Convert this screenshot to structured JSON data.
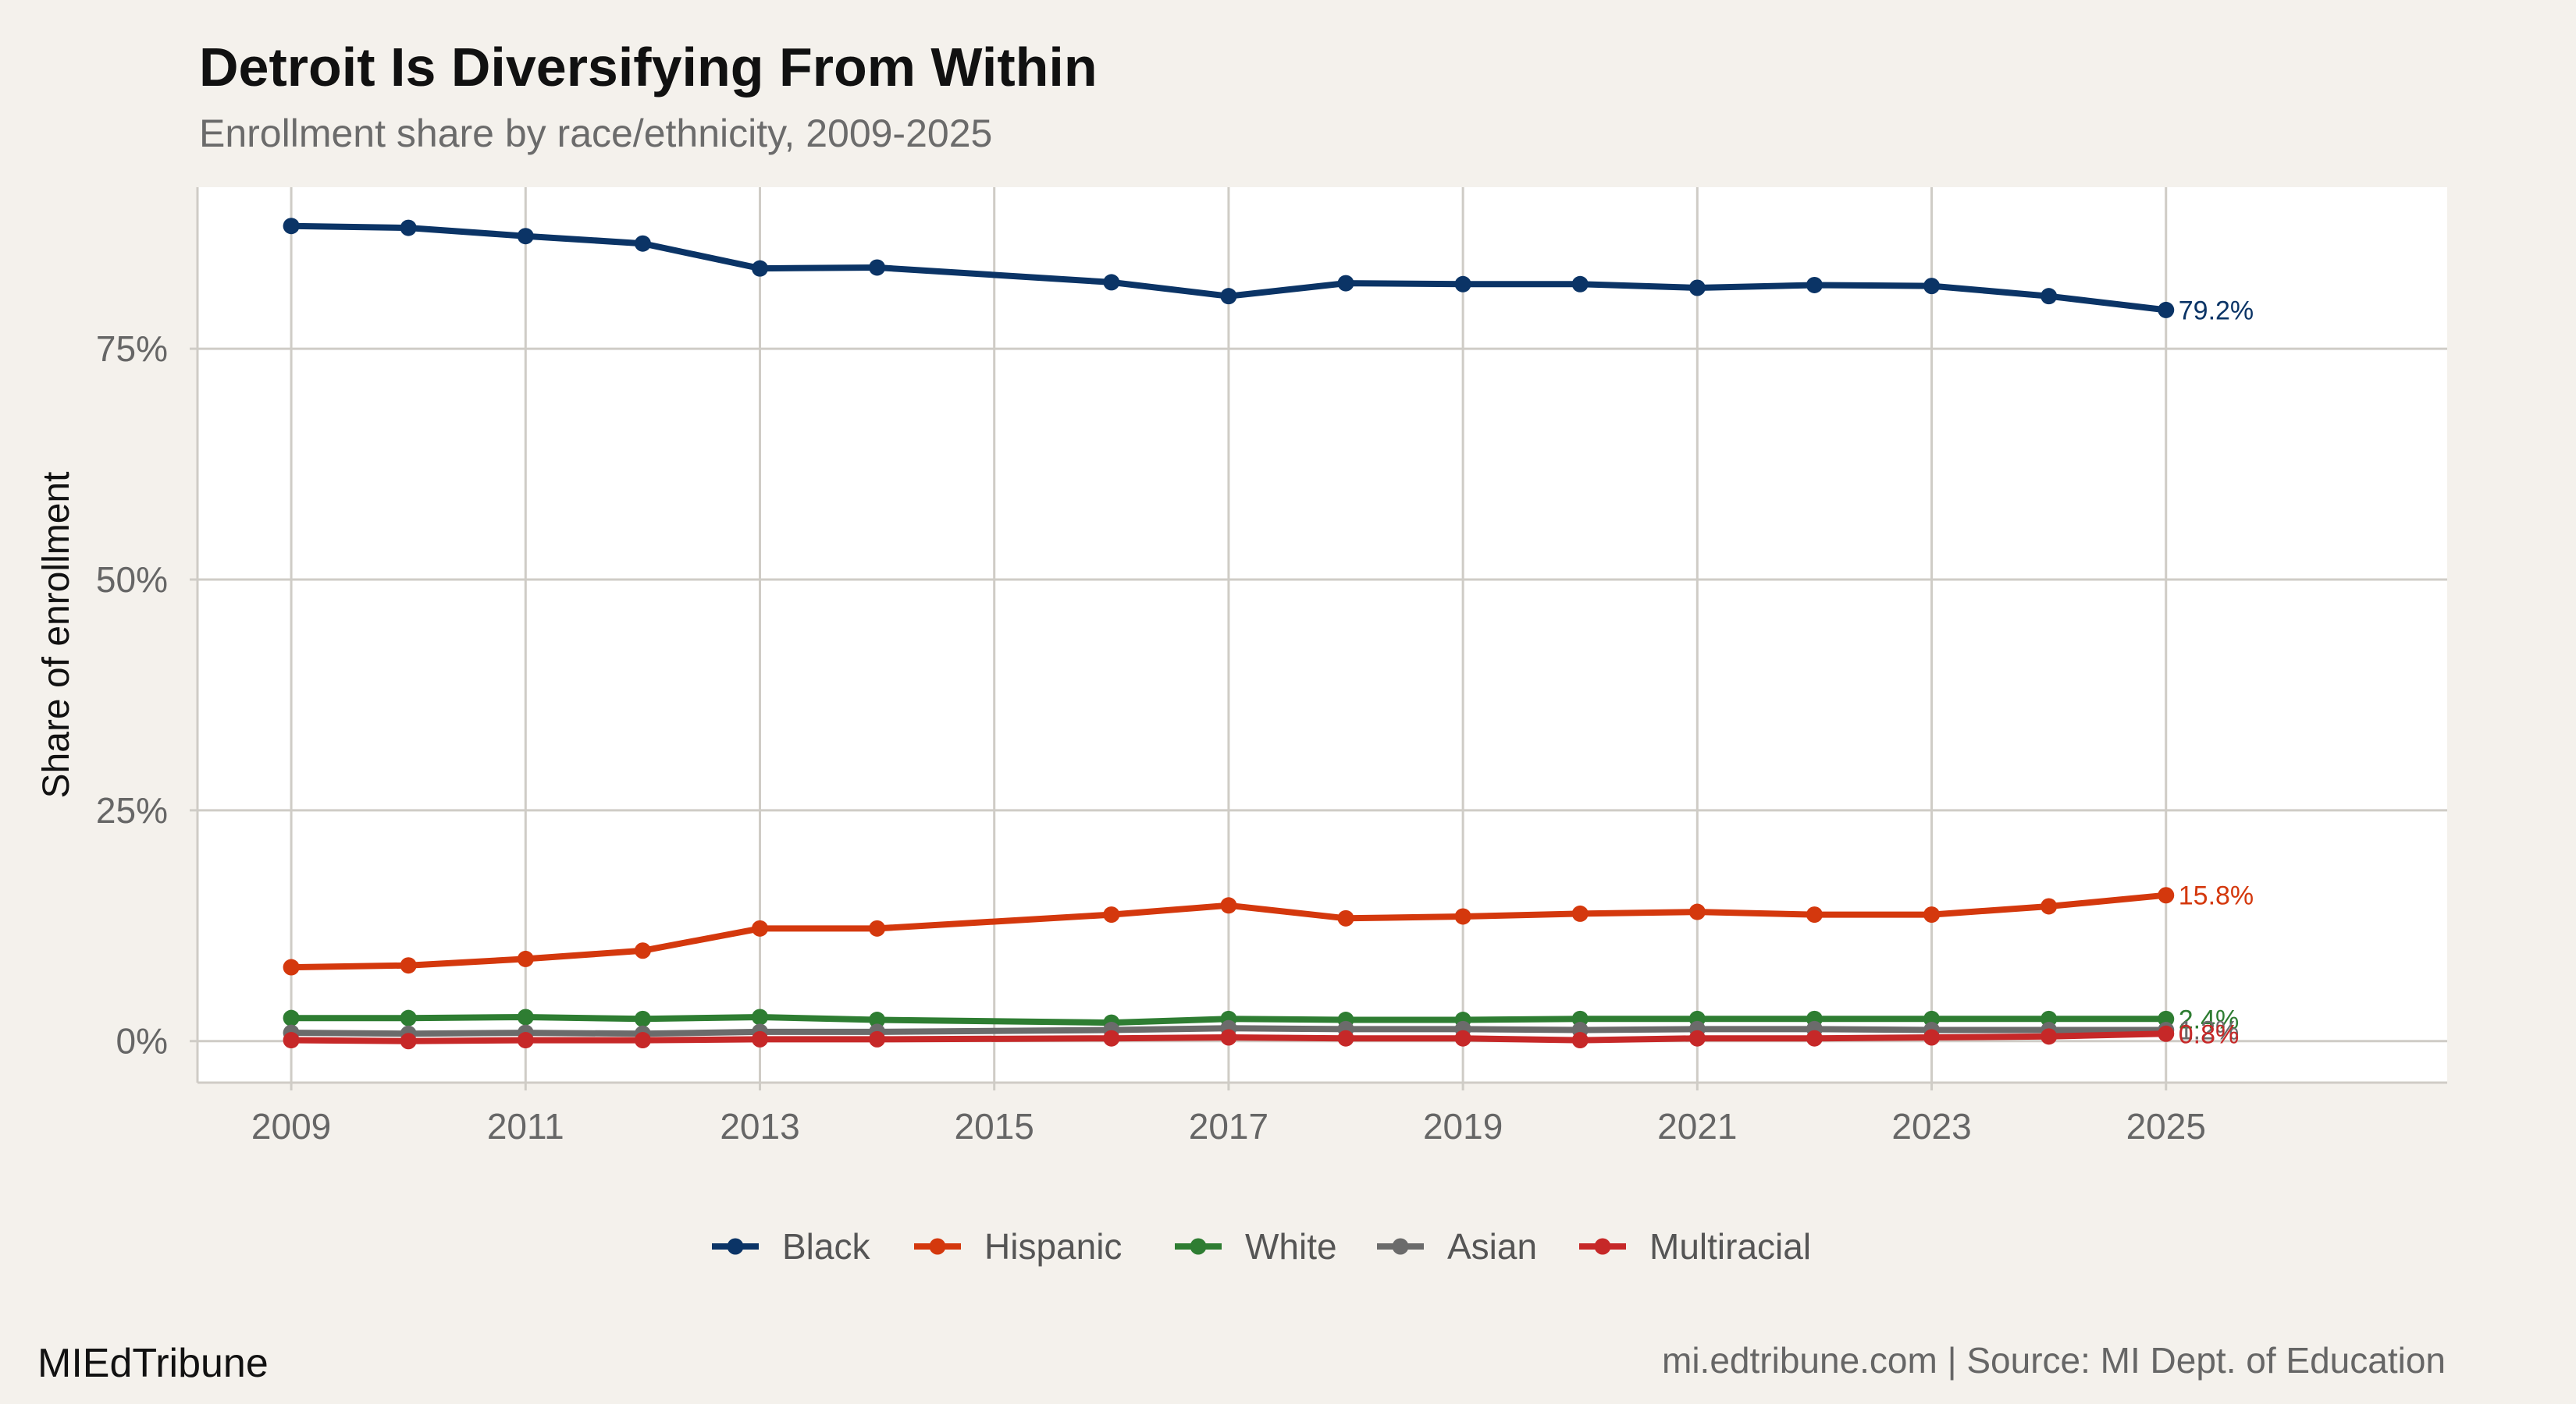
{
  "chart_data": {
    "type": "line",
    "title": "Detroit Is Diversifying From Within",
    "subtitle": "Enrollment share by race/ethnicity, 2009-2025",
    "xlabel": "",
    "ylabel": "Share of enrollment",
    "xlim": [
      2008.2,
      2027.4
    ],
    "ylim": [
      -4.5,
      92.5
    ],
    "x_ticks": [
      2009,
      2011,
      2013,
      2015,
      2017,
      2019,
      2021,
      2023,
      2025
    ],
    "x_tick_labels": [
      "2009",
      "2011",
      "2013",
      "2015",
      "2017",
      "2019",
      "2021",
      "2023",
      "2025"
    ],
    "y_ticks": [
      0,
      25,
      50,
      75
    ],
    "y_tick_labels": [
      "0%",
      "25%",
      "50%",
      "75%"
    ],
    "grid": true,
    "legend_position": "bottom",
    "series": [
      {
        "name": "Black",
        "color": "#0b3466",
        "x": [
          2009,
          2010,
          2011,
          2012,
          2013,
          2014,
          2016,
          2017,
          2018,
          2019,
          2020,
          2021,
          2022,
          2023,
          2024,
          2025
        ],
        "values": [
          88.3,
          88.1,
          87.2,
          86.4,
          83.7,
          83.8,
          82.2,
          80.7,
          82.1,
          82.0,
          82.0,
          81.6,
          81.9,
          81.8,
          80.7,
          79.2
        ],
        "end_label": "79.2%"
      },
      {
        "name": "Hispanic",
        "color": "#d4380d",
        "x": [
          2009,
          2010,
          2011,
          2012,
          2013,
          2014,
          2016,
          2017,
          2018,
          2019,
          2020,
          2021,
          2022,
          2023,
          2024,
          2025
        ],
        "values": [
          8.0,
          8.2,
          8.9,
          9.8,
          12.2,
          12.2,
          13.7,
          14.7,
          13.3,
          13.5,
          13.8,
          14.0,
          13.7,
          13.7,
          14.6,
          15.8
        ],
        "end_label": "15.8%"
      },
      {
        "name": "White",
        "color": "#2e7d32",
        "x": [
          2009,
          2010,
          2011,
          2012,
          2013,
          2014,
          2016,
          2017,
          2018,
          2019,
          2020,
          2021,
          2022,
          2023,
          2024,
          2025
        ],
        "values": [
          2.5,
          2.5,
          2.6,
          2.4,
          2.6,
          2.3,
          2.0,
          2.4,
          2.3,
          2.3,
          2.4,
          2.4,
          2.4,
          2.4,
          2.4,
          2.4
        ],
        "end_label": "2.4%"
      },
      {
        "name": "Asian",
        "color": "#6b6b6b",
        "x": [
          2009,
          2010,
          2011,
          2012,
          2013,
          2014,
          2016,
          2017,
          2018,
          2019,
          2020,
          2021,
          2022,
          2023,
          2024,
          2025
        ],
        "values": [
          0.9,
          0.8,
          0.9,
          0.8,
          1.0,
          1.0,
          1.2,
          1.4,
          1.3,
          1.3,
          1.2,
          1.3,
          1.3,
          1.2,
          1.2,
          1.2
        ],
        "end_label": "1.2%"
      },
      {
        "name": "Multiracial",
        "color": "#c62828",
        "x": [
          2009,
          2010,
          2011,
          2012,
          2013,
          2014,
          2016,
          2017,
          2018,
          2019,
          2020,
          2021,
          2022,
          2023,
          2024,
          2025
        ],
        "values": [
          0.1,
          0.0,
          0.1,
          0.1,
          0.2,
          0.2,
          0.3,
          0.4,
          0.3,
          0.3,
          0.1,
          0.3,
          0.3,
          0.4,
          0.5,
          0.8
        ],
        "end_label": "0.8%"
      }
    ]
  },
  "footer": {
    "brand": "MIEdTribune",
    "source": "mi.edtribune.com | Source: MI Dept. of Education"
  },
  "colors": {
    "background": "#f4f1ec",
    "panel": "#ffffff",
    "grid": "#cfccc6"
  }
}
